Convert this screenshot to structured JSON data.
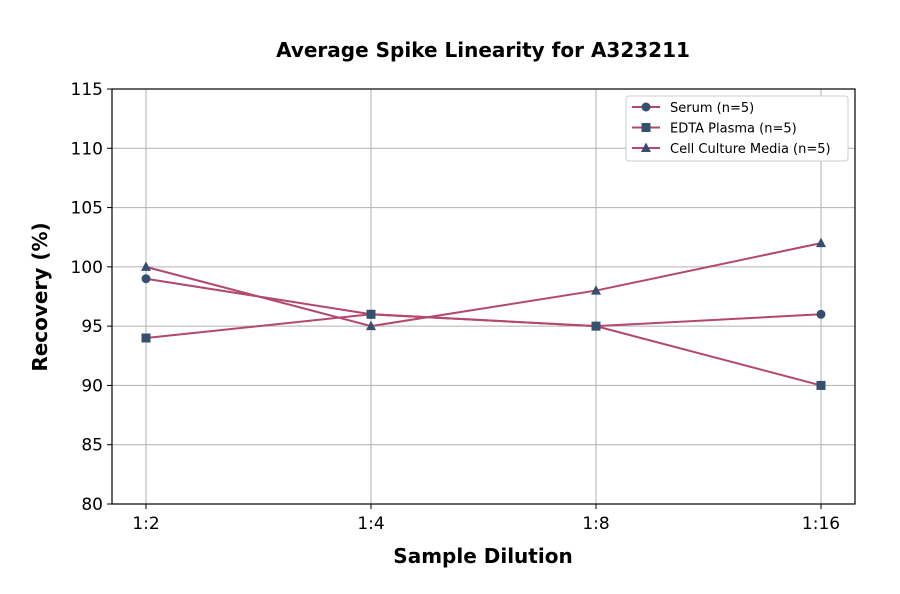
{
  "chart_data": {
    "type": "line",
    "title": "Average Spike Linearity for A323211",
    "xlabel": "Sample Dilution",
    "ylabel": "Recovery (%)",
    "categories": [
      "1:2",
      "1:4",
      "1:8",
      "1:16"
    ],
    "ylim": [
      80,
      115
    ],
    "yticks": [
      80,
      85,
      90,
      95,
      100,
      105,
      110,
      115
    ],
    "grid": true,
    "legend_position": "top-right",
    "line_color": "#b5476e",
    "marker_color": "#34506e",
    "series": [
      {
        "name": "Serum (n=5)",
        "marker": "circle",
        "values": [
          99,
          96,
          95,
          96
        ]
      },
      {
        "name": "EDTA Plasma (n=5)",
        "marker": "square",
        "values": [
          94,
          96,
          95,
          90
        ]
      },
      {
        "name": "Cell Culture Media (n=5)",
        "marker": "triangle",
        "values": [
          100,
          95,
          98,
          102
        ]
      }
    ]
  }
}
